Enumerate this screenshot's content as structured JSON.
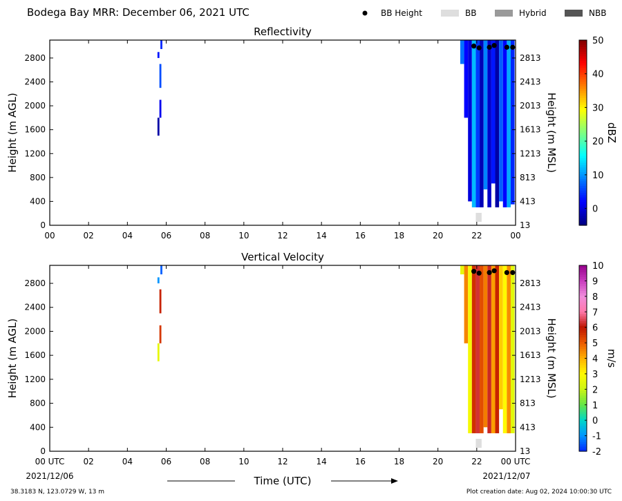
{
  "header": {
    "title": "Bodega Bay MRR:  December 06, 2021 UTC",
    "legend": [
      {
        "label": "BB Height",
        "kind": "dot",
        "color": "#000000"
      },
      {
        "label": "BB",
        "kind": "rect",
        "color": "#dedede"
      },
      {
        "label": "Hybrid",
        "kind": "rect",
        "color": "#9a9a9a"
      },
      {
        "label": "NBB",
        "kind": "rect",
        "color": "#555555"
      }
    ]
  },
  "footer": {
    "coords": "38.3183 N, 123.0729 W, 13 m",
    "creation": "Plot creation date: Aug 02, 2024 10:00:30 UTC",
    "time_label": "Time (UTC)",
    "start_date": "2021/12/06",
    "end_date": "2021/12/07"
  },
  "chart_data": [
    {
      "type": "heatmap",
      "title": "Reflectivity",
      "xlabel": "",
      "ylabel": "Height (m AGL)",
      "ylabel_right": "Height (m MSL)",
      "x_ticks": [
        "00",
        "02",
        "04",
        "06",
        "08",
        "10",
        "12",
        "14",
        "16",
        "18",
        "20",
        "22",
        "00"
      ],
      "y_ticks_left": [
        "0",
        "400",
        "800",
        "1200",
        "1600",
        "2000",
        "2400",
        "2800"
      ],
      "y_ticks_right": [
        "13",
        "413",
        "813",
        "1213",
        "1613",
        "2013",
        "2413",
        "2813"
      ],
      "xlim_hours": [
        0,
        24
      ],
      "ylim_m": [
        0,
        3100
      ],
      "colorbar": {
        "label": "dBZ",
        "range": [
          -5,
          50
        ],
        "ticks": [
          "0",
          "10",
          "20",
          "30",
          "40",
          "50"
        ],
        "tick_values": [
          0,
          10,
          20,
          30,
          40,
          50
        ],
        "colormap": "jet"
      },
      "echoes": [
        {
          "t0": 5.55,
          "t1": 5.65,
          "h0": 1500,
          "h1": 1800,
          "v": -3
        },
        {
          "t0": 5.65,
          "t1": 5.75,
          "h0": 1800,
          "h1": 2100,
          "v": 1
        },
        {
          "t0": 5.65,
          "t1": 5.75,
          "h0": 2300,
          "h1": 2700,
          "v": 6
        },
        {
          "t0": 5.55,
          "t1": 5.65,
          "h0": 2800,
          "h1": 2900,
          "v": 3
        },
        {
          "t0": 5.7,
          "t1": 5.8,
          "h0": 2950,
          "h1": 3100,
          "v": 4
        },
        {
          "t0": 21.15,
          "t1": 21.35,
          "h0": 2700,
          "h1": 3100,
          "v": 8
        },
        {
          "t0": 21.35,
          "t1": 21.55,
          "h0": 1800,
          "h1": 3100,
          "v": 2
        },
        {
          "t0": 21.55,
          "t1": 21.75,
          "h0": 400,
          "h1": 3100,
          "v": 0
        },
        {
          "t0": 21.75,
          "t1": 21.95,
          "h0": 300,
          "h1": 3100,
          "v": 12
        },
        {
          "t0": 21.95,
          "t1": 22.15,
          "h0": 300,
          "h1": 3100,
          "v": 5
        },
        {
          "t0": 22.15,
          "t1": 22.35,
          "h0": 300,
          "h1": 3100,
          "v": -2
        },
        {
          "t0": 22.35,
          "t1": 22.55,
          "h0": 600,
          "h1": 3100,
          "v": 9
        },
        {
          "t0": 22.55,
          "t1": 22.75,
          "h0": 300,
          "h1": 3100,
          "v": -1
        },
        {
          "t0": 22.75,
          "t1": 22.95,
          "h0": 700,
          "h1": 3100,
          "v": 3
        },
        {
          "t0": 22.95,
          "t1": 23.15,
          "h0": 300,
          "h1": 3100,
          "v": -3
        },
        {
          "t0": 23.15,
          "t1": 23.35,
          "h0": 400,
          "h1": 3100,
          "v": 7
        },
        {
          "t0": 23.35,
          "t1": 23.55,
          "h0": 300,
          "h1": 3100,
          "v": 2
        },
        {
          "t0": 23.55,
          "t1": 23.75,
          "h0": 300,
          "h1": 3100,
          "v": 11
        },
        {
          "t0": 23.75,
          "t1": 23.95,
          "h0": 350,
          "h1": 3100,
          "v": 4
        }
      ],
      "bb_height_points": [
        {
          "t": 21.85,
          "h": 3000
        },
        {
          "t": 22.12,
          "h": 2970
        },
        {
          "t": 22.65,
          "h": 2980
        },
        {
          "t": 22.9,
          "h": 3010
        },
        {
          "t": 23.55,
          "h": 2980
        },
        {
          "t": 23.85,
          "h": 2980
        }
      ],
      "bb_bars": [
        {
          "t0": 21.95,
          "t1": 22.25
        }
      ]
    },
    {
      "type": "heatmap",
      "title": "Vertical Velocity",
      "xlabel": "",
      "ylabel": "Height (m AGL)",
      "ylabel_right": "Height (m MSL)",
      "x_ticks": [
        "00 UTC",
        "02",
        "04",
        "06",
        "08",
        "10",
        "12",
        "14",
        "16",
        "18",
        "20",
        "22",
        "00 UTC"
      ],
      "y_ticks_left": [
        "0",
        "400",
        "800",
        "1200",
        "1600",
        "2000",
        "2400",
        "2800"
      ],
      "y_ticks_right": [
        "13",
        "413",
        "813",
        "1213",
        "1613",
        "2013",
        "2413",
        "2813"
      ],
      "xlim_hours": [
        0,
        24
      ],
      "ylim_m": [
        0,
        3100
      ],
      "colorbar": {
        "label": "m/s",
        "range": [
          -2,
          10
        ],
        "ticks": [
          "-2",
          "-1",
          "0",
          "1",
          "2",
          "3",
          "4",
          "5",
          "6",
          "7",
          "8",
          "9",
          "10"
        ],
        "tick_values": [
          -2,
          -1,
          0,
          1,
          2,
          3,
          4,
          5,
          6,
          7,
          8,
          9,
          10
        ],
        "colormap": "velocity"
      },
      "echoes": [
        {
          "t0": 5.55,
          "t1": 5.65,
          "h0": 1500,
          "h1": 1800,
          "v": 2.5
        },
        {
          "t0": 5.65,
          "t1": 5.75,
          "h0": 1800,
          "h1": 2100,
          "v": 5.5
        },
        {
          "t0": 5.65,
          "t1": 5.75,
          "h0": 2300,
          "h1": 2700,
          "v": 5.8
        },
        {
          "t0": 5.55,
          "t1": 5.65,
          "h0": 2800,
          "h1": 2900,
          "v": -1
        },
        {
          "t0": 5.7,
          "t1": 5.8,
          "h0": 2950,
          "h1": 3100,
          "v": -1.5
        },
        {
          "t0": 21.15,
          "t1": 21.35,
          "h0": 2950,
          "h1": 3100,
          "v": 2.5
        },
        {
          "t0": 21.35,
          "t1": 21.55,
          "h0": 1800,
          "h1": 3100,
          "v": 4.5
        },
        {
          "t0": 21.55,
          "t1": 21.75,
          "h0": 300,
          "h1": 3100,
          "v": 2.8
        },
        {
          "t0": 21.75,
          "t1": 21.95,
          "h0": 300,
          "h1": 3100,
          "v": 5.6
        },
        {
          "t0": 21.95,
          "t1": 22.15,
          "h0": 300,
          "h1": 3100,
          "v": 6.3
        },
        {
          "t0": 22.15,
          "t1": 22.35,
          "h0": 300,
          "h1": 3100,
          "v": 5.2
        },
        {
          "t0": 22.35,
          "t1": 22.55,
          "h0": 400,
          "h1": 3100,
          "v": 4.6
        },
        {
          "t0": 22.55,
          "t1": 22.75,
          "h0": 300,
          "h1": 3100,
          "v": 6.2
        },
        {
          "t0": 22.75,
          "t1": 22.95,
          "h0": 300,
          "h1": 3100,
          "v": 4.2
        },
        {
          "t0": 22.95,
          "t1": 23.15,
          "h0": 300,
          "h1": 3100,
          "v": 5.8
        },
        {
          "t0": 23.15,
          "t1": 23.35,
          "h0": 700,
          "h1": 3100,
          "v": 3.6
        },
        {
          "t0": 23.35,
          "t1": 23.55,
          "h0": 300,
          "h1": 3100,
          "v": 3.0
        },
        {
          "t0": 23.55,
          "t1": 23.75,
          "h0": 300,
          "h1": 3100,
          "v": 4.4
        },
        {
          "t0": 23.75,
          "t1": 23.95,
          "h0": 300,
          "h1": 3100,
          "v": 2.4
        }
      ],
      "bb_height_points": [
        {
          "t": 21.85,
          "h": 3000
        },
        {
          "t": 22.12,
          "h": 2970
        },
        {
          "t": 22.65,
          "h": 2980
        },
        {
          "t": 22.9,
          "h": 3010
        },
        {
          "t": 23.55,
          "h": 2980
        },
        {
          "t": 23.85,
          "h": 2980
        }
      ],
      "bb_bars": [
        {
          "t0": 21.95,
          "t1": 22.25
        }
      ]
    }
  ]
}
